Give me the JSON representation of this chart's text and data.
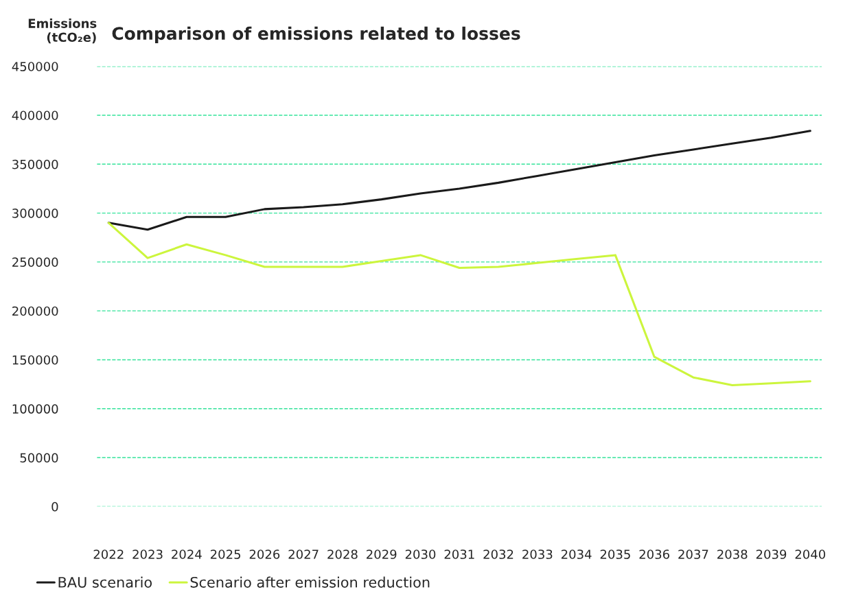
{
  "chart_data": {
    "type": "line",
    "title": "Comparison of emissions related to losses",
    "ylabel": "Emissions\n(tCO₂e)",
    "categories": [
      "2022",
      "2023",
      "2024",
      "2025",
      "2026",
      "2027",
      "2028",
      "2029",
      "2030",
      "2031",
      "2032",
      "2033",
      "2034",
      "2035",
      "2036",
      "2037",
      "2038",
      "2039",
      "2040"
    ],
    "series": [
      {
        "name": "BAU scenario",
        "color": "#1a1a1a",
        "values": [
          290000,
          283000,
          296000,
          296000,
          304000,
          306000,
          309000,
          314000,
          320000,
          325000,
          331000,
          338000,
          345000,
          352000,
          359000,
          365000,
          371000,
          377000,
          384000
        ]
      },
      {
        "name": "Scenario after emission reduction",
        "color": "#ccf53d",
        "values": [
          290000,
          254000,
          268000,
          257000,
          245000,
          245000,
          245000,
          251000,
          257000,
          244000,
          245000,
          249000,
          253000,
          257000,
          153000,
          132000,
          124000,
          126000,
          128000
        ]
      }
    ],
    "ylim": [
      0,
      450000
    ],
    "yticks": [
      0,
      50000,
      100000,
      150000,
      200000,
      250000,
      300000,
      350000,
      400000,
      450000
    ],
    "grid": "y",
    "legend": "bottom",
    "marker": "none",
    "line_style": "solid"
  }
}
